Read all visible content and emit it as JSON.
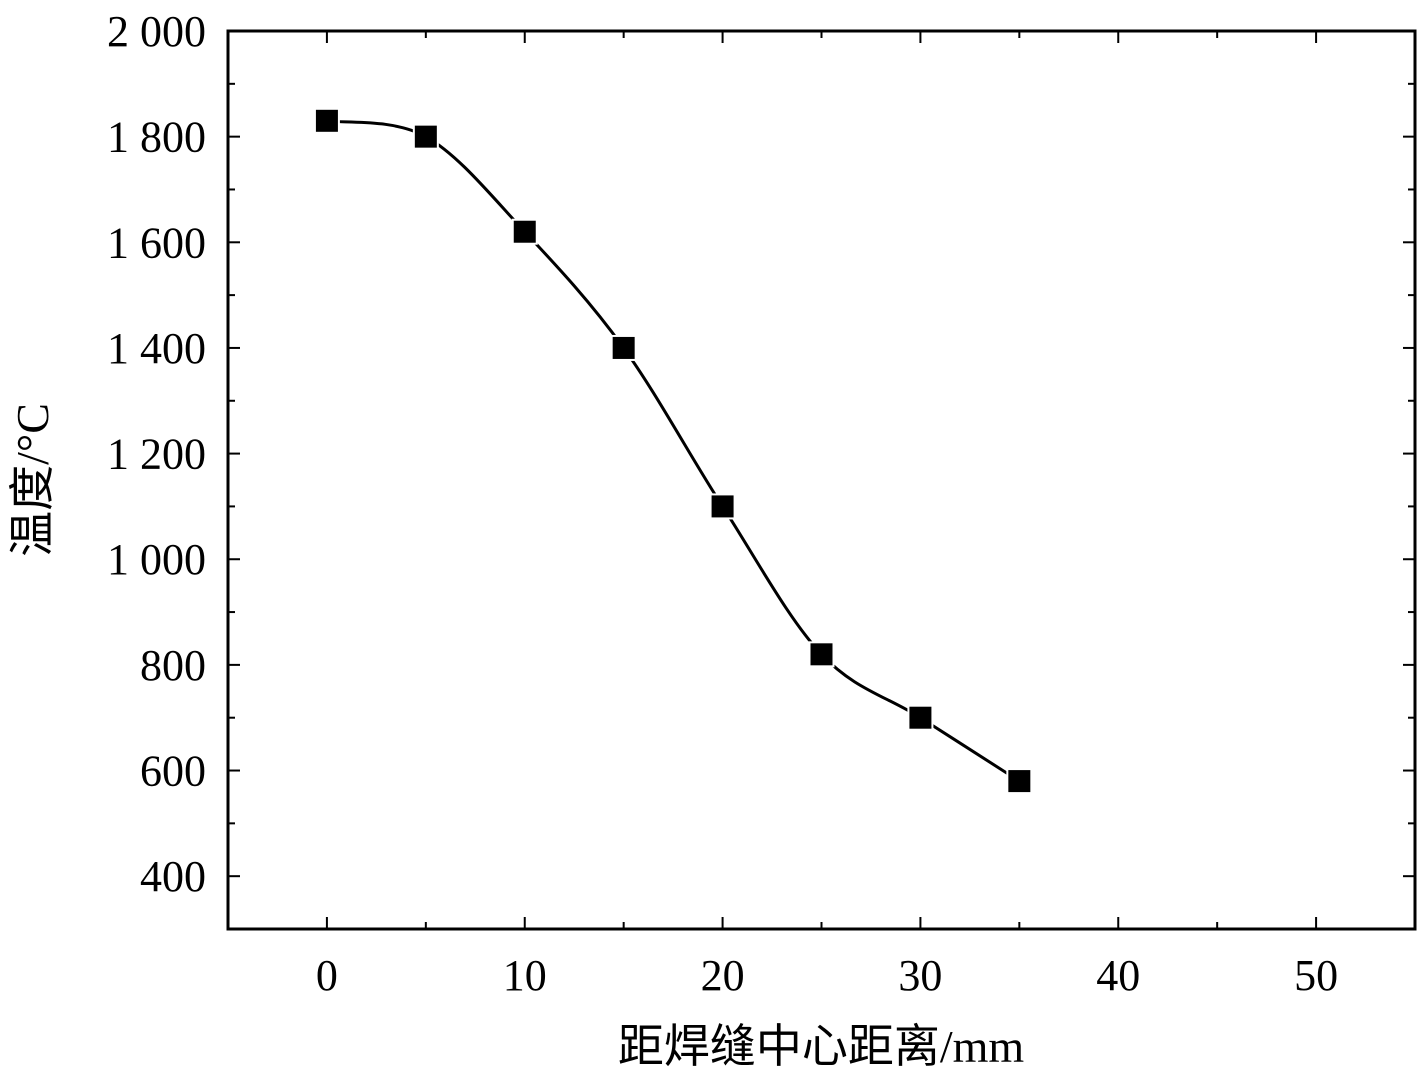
{
  "chart_data": {
    "type": "line",
    "xlabel": "距焊缝中心距离/mm",
    "ylabel": "温度/°C",
    "xlim": [
      -5,
      55
    ],
    "ylim": [
      300,
      2000
    ],
    "x_ticks": [
      {
        "value": 0,
        "label": "0"
      },
      {
        "value": 10,
        "label": "10"
      },
      {
        "value": 20,
        "label": "20"
      },
      {
        "value": 30,
        "label": "30"
      },
      {
        "value": 40,
        "label": "40"
      },
      {
        "value": 50,
        "label": "50"
      }
    ],
    "y_ticks": [
      {
        "value": 400,
        "label": "400"
      },
      {
        "value": 600,
        "label": "600"
      },
      {
        "value": 800,
        "label": "800"
      },
      {
        "value": 1000,
        "label": "1 000"
      },
      {
        "value": 1200,
        "label": "1 200"
      },
      {
        "value": 1400,
        "label": "1 400"
      },
      {
        "value": 1600,
        "label": "1 600"
      },
      {
        "value": 1800,
        "label": "1 800"
      },
      {
        "value": 2000,
        "label": "2 000"
      }
    ],
    "series": [
      {
        "x": [
          0,
          5,
          10,
          15,
          20,
          25,
          30,
          35
        ],
        "y": [
          1830,
          1800,
          1620,
          1400,
          1100,
          820,
          700,
          580
        ],
        "marker": "square",
        "smooth": true,
        "color": "#000000"
      }
    ],
    "legend": "none",
    "grid": false
  }
}
